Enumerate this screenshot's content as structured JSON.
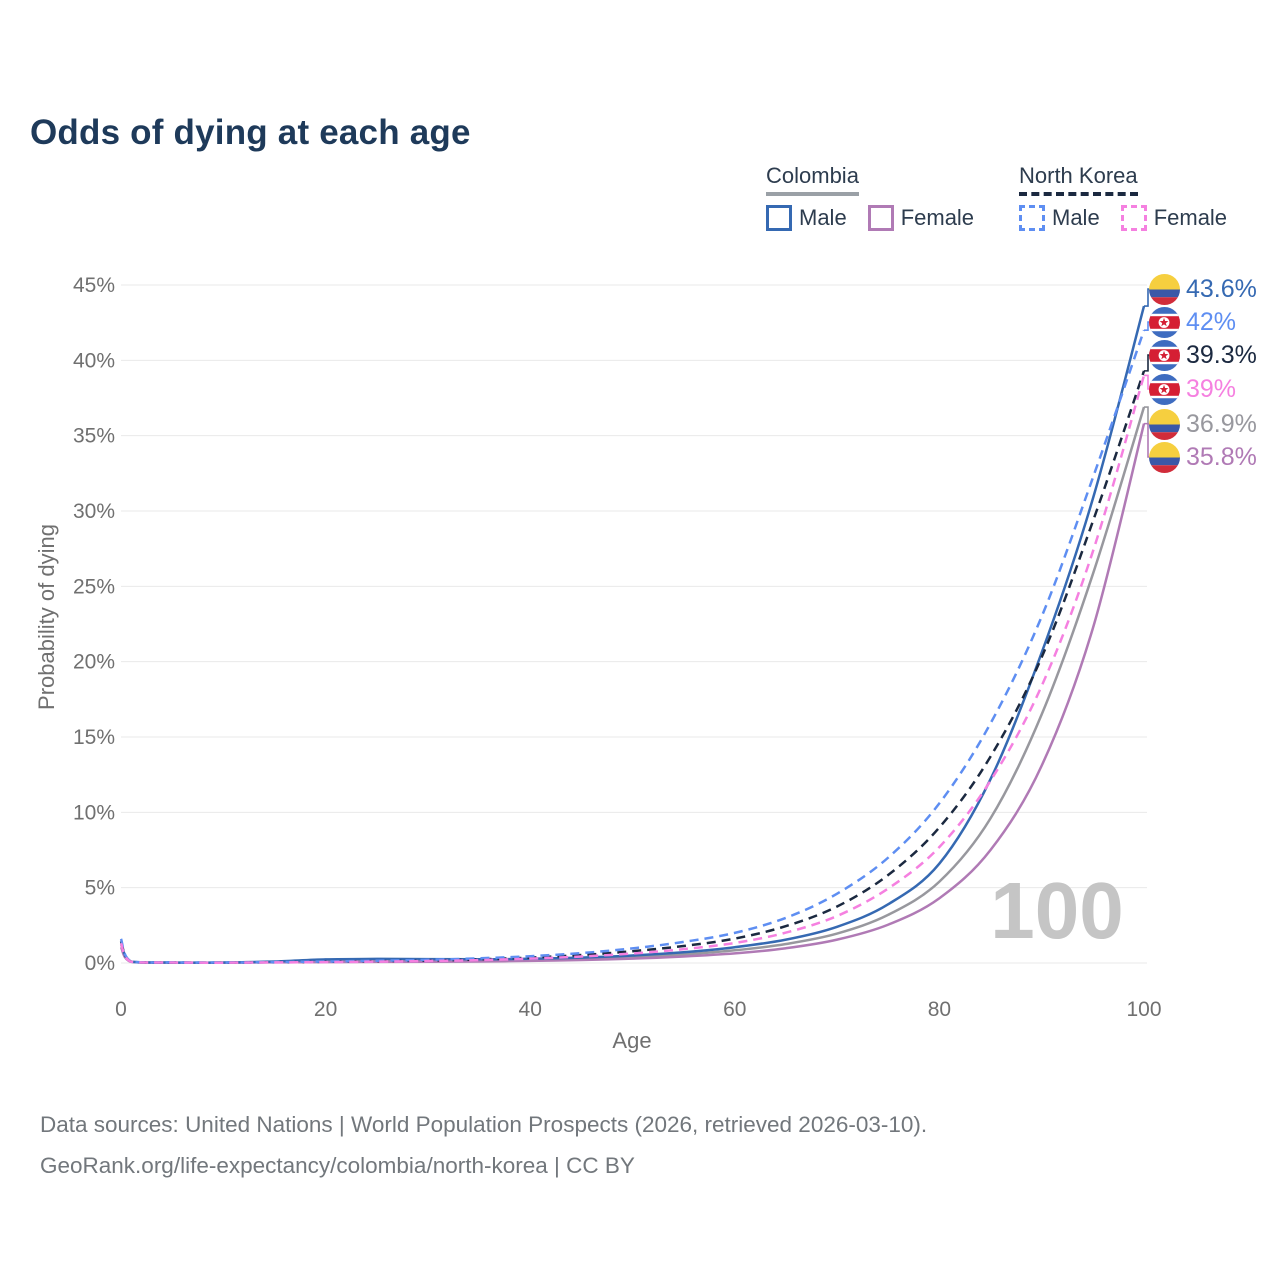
{
  "title": "Odds of dying at each age",
  "age_cursor_label": "100",
  "legend": {
    "groups": [
      {
        "label": "Colombia",
        "line_style": "solid",
        "items": [
          {
            "label": "Male",
            "series": "colombia_male"
          },
          {
            "label": "Female",
            "series": "colombia_female"
          }
        ]
      },
      {
        "label": "North Korea",
        "line_style": "dashed",
        "items": [
          {
            "label": "Male",
            "series": "north_korea_male"
          },
          {
            "label": "Female",
            "series": "north_korea_female"
          }
        ]
      }
    ]
  },
  "axes": {
    "x": {
      "title": "Age",
      "min": 0,
      "max": 100,
      "ticks": [
        0,
        20,
        40,
        60,
        80,
        100
      ]
    },
    "y": {
      "title": "Probability of dying",
      "min": 0,
      "max": 45,
      "ticks": [
        0,
        5,
        10,
        15,
        20,
        25,
        30,
        35,
        40,
        45
      ],
      "tick_suffix": "%"
    }
  },
  "chart_data": {
    "type": "line",
    "title": "Odds of dying at each age",
    "xlabel": "Age",
    "ylabel": "Probability of dying",
    "xlim": [
      0,
      100
    ],
    "ylim": [
      0,
      45
    ],
    "grid": "horizontal",
    "x": [
      0,
      1,
      5,
      10,
      15,
      20,
      25,
      30,
      35,
      40,
      45,
      50,
      55,
      60,
      65,
      70,
      75,
      80,
      85,
      90,
      95,
      100
    ],
    "series": [
      {
        "id": "colombia_total",
        "name": "Colombia (both sexes)",
        "color": "#98989e",
        "dash": "solid",
        "values": [
          1.25,
          0.08,
          0.025,
          0.025,
          0.07,
          0.15,
          0.17,
          0.17,
          0.17,
          0.21,
          0.28,
          0.39,
          0.57,
          0.84,
          1.26,
          1.95,
          3.2,
          5.4,
          9.6,
          16.5,
          25.8,
          36.9
        ],
        "end_label": "36.9%"
      },
      {
        "id": "colombia_female",
        "name": "Colombia Female",
        "color": "#b07ab5",
        "dash": "solid",
        "values": [
          1.05,
          0.07,
          0.02,
          0.02,
          0.04,
          0.06,
          0.07,
          0.08,
          0.1,
          0.14,
          0.2,
          0.29,
          0.43,
          0.64,
          0.98,
          1.55,
          2.55,
          4.3,
          7.5,
          13.1,
          22.2,
          35.8
        ],
        "end_label": "35.8%"
      },
      {
        "id": "colombia_male",
        "name": "Colombia Male",
        "color": "#3569b2",
        "dash": "solid",
        "values": [
          1.45,
          0.09,
          0.03,
          0.03,
          0.1,
          0.24,
          0.27,
          0.26,
          0.25,
          0.28,
          0.36,
          0.5,
          0.72,
          1.05,
          1.55,
          2.4,
          3.9,
          6.6,
          12.2,
          20.6,
          30.8,
          43.6
        ],
        "end_label": "43.6%"
      },
      {
        "id": "north_korea_total",
        "name": "North Korea (both sexes)",
        "color": "#1b2940",
        "dash": "dashed",
        "values": [
          1.45,
          0.09,
          0.035,
          0.027,
          0.05,
          0.08,
          0.12,
          0.16,
          0.24,
          0.36,
          0.53,
          0.78,
          1.13,
          1.62,
          2.45,
          3.75,
          5.85,
          9.0,
          13.7,
          20.3,
          29.3,
          39.3
        ],
        "end_label": "39.3%"
      },
      {
        "id": "north_korea_male",
        "name": "North Korea Male",
        "color": "#5e8ef2",
        "dash": "dashed",
        "values": [
          1.6,
          0.1,
          0.04,
          0.03,
          0.06,
          0.1,
          0.15,
          0.21,
          0.31,
          0.45,
          0.66,
          0.97,
          1.4,
          2.0,
          3.0,
          4.6,
          7.0,
          10.6,
          15.9,
          23.0,
          32.2,
          42.0
        ],
        "end_label": "42%"
      },
      {
        "id": "north_korea_female",
        "name": "North Korea Female",
        "color": "#f580e0",
        "dash": "dashed",
        "values": [
          1.3,
          0.08,
          0.03,
          0.022,
          0.04,
          0.06,
          0.09,
          0.13,
          0.19,
          0.29,
          0.43,
          0.63,
          0.92,
          1.33,
          2.02,
          3.12,
          4.95,
          7.7,
          12.1,
          18.4,
          27.3,
          39.0
        ],
        "end_label": "39%"
      }
    ]
  },
  "end_labels": [
    {
      "series": "colombia_male",
      "flag": "colombia",
      "text": "43.6%",
      "value": 43.6
    },
    {
      "series": "north_korea_male",
      "flag": "north_korea",
      "text": "42%",
      "value": 42
    },
    {
      "series": "north_korea_total",
      "flag": "north_korea",
      "text": "39.3%",
      "value": 39.3
    },
    {
      "series": "north_korea_female",
      "flag": "north_korea",
      "text": "39%",
      "value": 39
    },
    {
      "series": "colombia_total",
      "flag": "colombia",
      "text": "36.9%",
      "value": 36.9
    },
    {
      "series": "colombia_female",
      "flag": "colombia",
      "text": "35.8%",
      "value": 35.8
    }
  ],
  "footer": {
    "line1": "Data sources: United Nations | World Population Prospects (2026, retrieved 2026-03-10).",
    "line2": "GeoRank.org/life-expectancy/colombia/north-korea | CC BY"
  },
  "colors": {
    "title_text": "#1e3a5a",
    "legend_text": "#2d3c4e",
    "axis_text": "#707070",
    "grid": "#e9e9e9",
    "watermark": "#c5c5c5",
    "footer_text": "#72777c",
    "colombia_underline": "#9aa0a6",
    "north_korea_underline": "#1b2940",
    "flag_colombia_yellow": "#f6cf3f",
    "flag_colombia_blue": "#3b58a7",
    "flag_colombia_red": "#d12c3a",
    "flag_nk_blue": "#3e6cc0",
    "flag_nk_red": "#d51f34",
    "flag_nk_white": "#ffffff"
  }
}
